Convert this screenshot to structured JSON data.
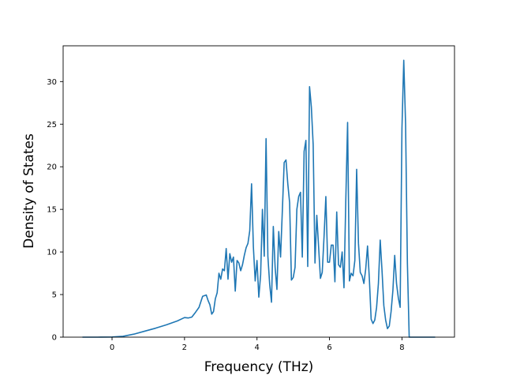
{
  "chart_data": {
    "type": "line",
    "title": "",
    "xlabel": "Frequency (THz)",
    "ylabel": "Density of States",
    "xlim": [
      -1.35,
      9.45
    ],
    "ylim": [
      0,
      34.2
    ],
    "xticks": [
      0,
      2,
      4,
      6,
      8
    ],
    "yticks": [
      0,
      5,
      10,
      15,
      20,
      25,
      30
    ],
    "grid": false,
    "legend": "none",
    "series": [
      {
        "color": "#1f77b4",
        "x": [
          -0.8,
          -0.4,
          0.0,
          0.3,
          0.6,
          0.9,
          1.2,
          1.5,
          1.8,
          2.0,
          2.1,
          2.2,
          2.3,
          2.4,
          2.5,
          2.6,
          2.65,
          2.7,
          2.75,
          2.8,
          2.85,
          2.9,
          2.95,
          3.0,
          3.05,
          3.1,
          3.15,
          3.2,
          3.25,
          3.3,
          3.35,
          3.4,
          3.45,
          3.5,
          3.55,
          3.6,
          3.65,
          3.7,
          3.75,
          3.8,
          3.85,
          3.9,
          3.95,
          4.0,
          4.05,
          4.1,
          4.15,
          4.2,
          4.25,
          4.3,
          4.35,
          4.4,
          4.45,
          4.5,
          4.55,
          4.6,
          4.65,
          4.7,
          4.75,
          4.8,
          4.85,
          4.9,
          4.95,
          5.0,
          5.05,
          5.1,
          5.15,
          5.2,
          5.25,
          5.3,
          5.35,
          5.4,
          5.45,
          5.5,
          5.55,
          5.6,
          5.65,
          5.7,
          5.75,
          5.8,
          5.85,
          5.9,
          5.95,
          6.0,
          6.05,
          6.1,
          6.15,
          6.2,
          6.25,
          6.3,
          6.35,
          6.4,
          6.45,
          6.5,
          6.55,
          6.6,
          6.65,
          6.7,
          6.75,
          6.8,
          6.85,
          6.9,
          6.95,
          7.0,
          7.05,
          7.1,
          7.15,
          7.2,
          7.25,
          7.3,
          7.35,
          7.4,
          7.45,
          7.5,
          7.55,
          7.6,
          7.65,
          7.7,
          7.75,
          7.8,
          7.85,
          7.9,
          7.95,
          8.0,
          8.05,
          8.1,
          8.15,
          8.2,
          8.5,
          8.9
        ],
        "y": [
          0.0,
          0.0,
          0.02,
          0.1,
          0.35,
          0.7,
          1.05,
          1.45,
          1.9,
          2.3,
          2.25,
          2.35,
          2.9,
          3.5,
          4.8,
          4.95,
          4.3,
          3.8,
          2.7,
          3.0,
          4.5,
          5.2,
          7.5,
          6.8,
          8.0,
          7.8,
          10.4,
          6.8,
          9.8,
          8.8,
          9.4,
          5.4,
          9.0,
          8.7,
          7.8,
          8.5,
          9.6,
          10.5,
          11.0,
          12.5,
          18.0,
          10.6,
          6.6,
          9.0,
          4.7,
          7.3,
          15.0,
          9.5,
          23.3,
          9.5,
          6.2,
          4.1,
          13.0,
          8.2,
          5.6,
          12.4,
          9.4,
          14.9,
          20.5,
          20.8,
          18.0,
          15.8,
          6.7,
          7.0,
          8.2,
          15.0,
          16.5,
          17.0,
          9.4,
          21.8,
          23.1,
          8.3,
          29.4,
          27.0,
          22.6,
          8.7,
          14.3,
          10.6,
          6.9,
          7.6,
          11.8,
          16.5,
          8.8,
          8.8,
          10.8,
          10.8,
          6.5,
          14.7,
          8.5,
          8.2,
          10.0,
          5.8,
          16.0,
          25.2,
          6.6,
          7.5,
          7.2,
          9.0,
          19.7,
          11.0,
          7.6,
          7.2,
          6.3,
          8.0,
          10.7,
          6.9,
          2.1,
          1.6,
          2.0,
          3.5,
          6.3,
          11.4,
          7.8,
          3.7,
          2.0,
          1.0,
          1.3,
          3.0,
          5.5,
          9.6,
          6.3,
          4.6,
          3.5,
          24.5,
          32.5,
          25.0,
          8.7,
          0.0,
          0.0,
          0.0
        ]
      }
    ]
  }
}
